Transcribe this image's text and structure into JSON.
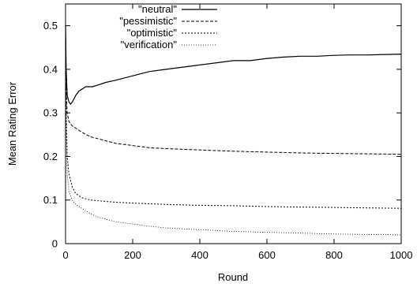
{
  "chart_data": {
    "type": "line",
    "xlabel": "Round",
    "ylabel": "Mean Rating Error",
    "xlim": [
      0,
      1000
    ],
    "ylim": [
      0,
      0.55
    ],
    "xticks": [
      0,
      200,
      400,
      600,
      800,
      1000
    ],
    "yticks": [
      0,
      0.1,
      0.2,
      0.3,
      0.4,
      0.5
    ],
    "xtick_labels": [
      "0",
      "200",
      "400",
      "600",
      "800",
      "1000"
    ],
    "ytick_labels": [
      "0",
      "0.1",
      "0.2",
      "0.3",
      "0.4",
      "0.5"
    ],
    "grid": false,
    "legend_position": "top-center",
    "series": [
      {
        "name": "\"neutral\"",
        "dash": "solid",
        "color": "#000000",
        "x": [
          0,
          2,
          5,
          10,
          15,
          20,
          30,
          40,
          50,
          60,
          80,
          100,
          120,
          150,
          200,
          250,
          300,
          350,
          400,
          450,
          500,
          550,
          600,
          650,
          700,
          750,
          800,
          850,
          900,
          950,
          1000
        ],
        "y": [
          0.5,
          0.4,
          0.34,
          0.325,
          0.32,
          0.325,
          0.34,
          0.35,
          0.355,
          0.36,
          0.36,
          0.365,
          0.37,
          0.375,
          0.385,
          0.395,
          0.4,
          0.405,
          0.41,
          0.415,
          0.42,
          0.42,
          0.425,
          0.428,
          0.43,
          0.43,
          0.432,
          0.433,
          0.433,
          0.434,
          0.435
        ]
      },
      {
        "name": "\"pessimistic\"",
        "dash": "dashed",
        "color": "#000000",
        "x": [
          0,
          2,
          5,
          10,
          20,
          30,
          50,
          75,
          100,
          150,
          200,
          250,
          300,
          400,
          500,
          600,
          700,
          800,
          900,
          1000
        ],
        "y": [
          0.5,
          0.35,
          0.3,
          0.28,
          0.27,
          0.265,
          0.255,
          0.245,
          0.24,
          0.23,
          0.225,
          0.22,
          0.218,
          0.215,
          0.212,
          0.21,
          0.208,
          0.207,
          0.206,
          0.205
        ]
      },
      {
        "name": "\"optimistic\"",
        "dash": "dotted",
        "color": "#000000",
        "x": [
          0,
          2,
          5,
          10,
          20,
          30,
          50,
          75,
          100,
          150,
          200,
          300,
          400,
          500,
          600,
          700,
          800,
          900,
          1000
        ],
        "y": [
          0.5,
          0.3,
          0.2,
          0.16,
          0.13,
          0.115,
          0.105,
          0.1,
          0.098,
          0.095,
          0.093,
          0.09,
          0.088,
          0.087,
          0.085,
          0.084,
          0.083,
          0.082,
          0.081
        ]
      },
      {
        "name": "\"verification\"",
        "dash": "fine-dotted",
        "color": "#000000",
        "x": [
          0,
          2,
          5,
          10,
          20,
          30,
          50,
          75,
          100,
          150,
          200,
          250,
          300,
          400,
          500,
          600,
          700,
          800,
          900,
          1000
        ],
        "y": [
          0.5,
          0.25,
          0.16,
          0.12,
          0.1,
          0.09,
          0.08,
          0.068,
          0.06,
          0.05,
          0.045,
          0.04,
          0.036,
          0.032,
          0.028,
          0.026,
          0.024,
          0.022,
          0.021,
          0.02
        ]
      }
    ]
  }
}
